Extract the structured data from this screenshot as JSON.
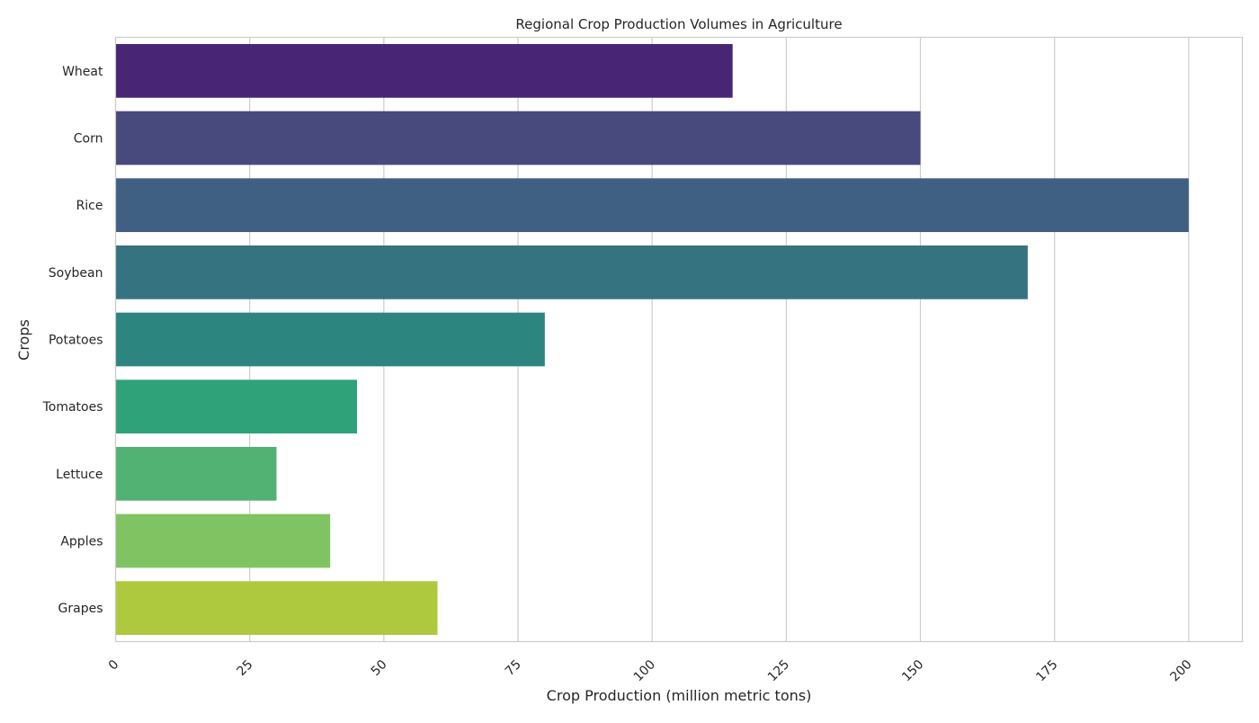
{
  "chart_data": {
    "type": "bar",
    "orientation": "horizontal",
    "title": "Regional Crop Production Volumes in Agriculture",
    "xlabel": "Crop Production (million metric tons)",
    "ylabel": "Crops",
    "categories": [
      "Wheat",
      "Corn",
      "Rice",
      "Soybean",
      "Potatoes",
      "Tomatoes",
      "Lettuce",
      "Apples",
      "Grapes"
    ],
    "values": [
      115,
      150,
      200,
      170,
      80,
      45,
      30,
      40,
      60
    ],
    "colors": [
      "#482575",
      "#48497c",
      "#3f5f83",
      "#357381",
      "#2c857e",
      "#30a27a",
      "#52b273",
      "#80c362",
      "#aec93d"
    ],
    "xlim": [
      0,
      210
    ],
    "xticks": [
      0,
      25,
      50,
      75,
      100,
      125,
      150,
      175,
      200
    ],
    "xtick_labels": [
      "0",
      "25",
      "50",
      "75",
      "100",
      "125",
      "150",
      "175",
      "200"
    ],
    "grid": true,
    "legend": "none"
  }
}
